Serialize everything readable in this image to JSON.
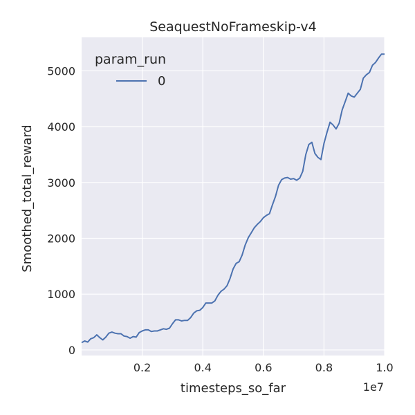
{
  "chart_data": {
    "type": "line",
    "title": "SeaquestNoFrameskip-v4",
    "xlabel": "timesteps_so_far",
    "ylabel": "Smoothed_total_reward",
    "x_offset_label": "1e7",
    "xlim": [
      0.0,
      1.0
    ],
    "ylim": [
      -100,
      5600
    ],
    "x_ticks": [
      0.2,
      0.4,
      0.6,
      0.8,
      1.0
    ],
    "x_tick_labels": [
      "0.2",
      "0.4",
      "0.6",
      "0.8",
      "1.0"
    ],
    "y_ticks": [
      0,
      1000,
      2000,
      3000,
      4000,
      5000
    ],
    "y_tick_labels": [
      "0",
      "1000",
      "2000",
      "3000",
      "4000",
      "5000"
    ],
    "grid": true,
    "legend": {
      "title": "param_run",
      "placement": "top-left",
      "entries": [
        "0"
      ]
    },
    "colors": {
      "background": "#eaeaf2",
      "grid": "#ffffff",
      "series": "#4c72b0"
    },
    "series": [
      {
        "name": "0",
        "x": [
          0.0,
          0.01,
          0.02,
          0.03,
          0.04,
          0.05,
          0.06,
          0.07,
          0.08,
          0.09,
          0.1,
          0.11,
          0.12,
          0.13,
          0.14,
          0.15,
          0.16,
          0.17,
          0.18,
          0.19,
          0.2,
          0.21,
          0.22,
          0.23,
          0.24,
          0.25,
          0.26,
          0.27,
          0.28,
          0.29,
          0.3,
          0.31,
          0.32,
          0.33,
          0.34,
          0.35,
          0.36,
          0.37,
          0.38,
          0.39,
          0.4,
          0.41,
          0.42,
          0.43,
          0.44,
          0.45,
          0.46,
          0.47,
          0.48,
          0.49,
          0.5,
          0.51,
          0.52,
          0.53,
          0.54,
          0.55,
          0.56,
          0.57,
          0.58,
          0.59,
          0.6,
          0.61,
          0.62,
          0.63,
          0.64,
          0.65,
          0.66,
          0.67,
          0.68,
          0.69,
          0.7,
          0.71,
          0.72,
          0.73,
          0.74,
          0.75,
          0.76,
          0.77,
          0.78,
          0.79,
          0.8,
          0.81,
          0.82,
          0.83,
          0.84,
          0.85,
          0.86,
          0.87,
          0.88,
          0.89,
          0.9,
          0.91,
          0.92,
          0.93,
          0.94,
          0.95,
          0.96,
          0.97,
          0.98,
          0.99,
          1.0
        ],
        "y": [
          130,
          160,
          140,
          200,
          220,
          270,
          220,
          180,
          230,
          300,
          320,
          300,
          290,
          290,
          250,
          240,
          210,
          240,
          230,
          310,
          340,
          360,
          360,
          330,
          340,
          340,
          360,
          380,
          370,
          390,
          470,
          540,
          540,
          520,
          530,
          530,
          580,
          660,
          700,
          710,
          760,
          840,
          840,
          840,
          880,
          980,
          1050,
          1090,
          1150,
          1280,
          1450,
          1550,
          1580,
          1700,
          1880,
          2010,
          2100,
          2190,
          2250,
          2300,
          2370,
          2410,
          2440,
          2600,
          2750,
          2950,
          3050,
          3080,
          3090,
          3060,
          3070,
          3040,
          3080,
          3200,
          3500,
          3680,
          3720,
          3520,
          3450,
          3410,
          3700,
          3900,
          4080,
          4030,
          3960,
          4060,
          4300,
          4450,
          4600,
          4550,
          4530,
          4600,
          4670,
          4870,
          4930,
          4970,
          5100,
          5150,
          5230,
          5300,
          5300
        ]
      }
    ]
  }
}
